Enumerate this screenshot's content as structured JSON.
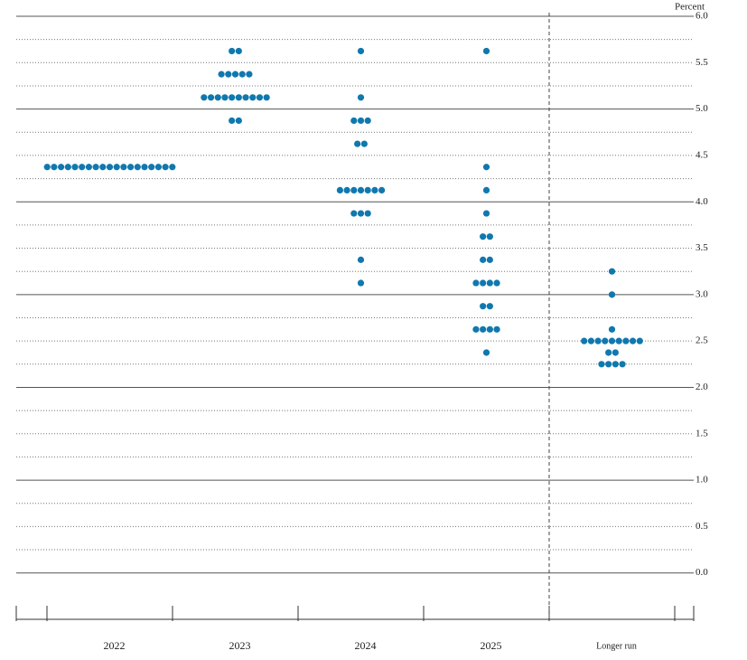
{
  "chart_data": {
    "type": "dot",
    "y_label": "Percent",
    "categories": [
      "2022",
      "2023",
      "2024",
      "2025",
      "Longer run"
    ],
    "dots": [
      [
        4.375,
        4.375,
        4.375,
        4.375,
        4.375,
        4.375,
        4.375,
        4.375,
        4.375,
        4.375,
        4.375,
        4.375,
        4.375,
        4.375,
        4.375,
        4.375,
        4.375,
        4.375,
        4.375
      ],
      [
        5.625,
        5.625,
        5.375,
        5.375,
        5.375,
        5.375,
        5.375,
        5.125,
        5.125,
        5.125,
        5.125,
        5.125,
        5.125,
        5.125,
        5.125,
        5.125,
        5.125,
        4.875,
        4.875
      ],
      [
        5.625,
        5.125,
        4.875,
        4.875,
        4.875,
        4.625,
        4.625,
        4.125,
        4.125,
        4.125,
        4.125,
        4.125,
        4.125,
        4.125,
        3.875,
        3.875,
        3.875,
        3.375,
        3.125
      ],
      [
        5.625,
        4.375,
        4.125,
        3.875,
        3.625,
        3.625,
        3.375,
        3.375,
        3.125,
        3.125,
        3.125,
        3.125,
        2.875,
        2.875,
        2.625,
        2.625,
        2.625,
        2.625,
        2.375
      ],
      [
        3.25,
        3.0,
        2.625,
        2.5,
        2.5,
        2.5,
        2.5,
        2.5,
        2.5,
        2.5,
        2.5,
        2.5,
        2.375,
        2.375,
        2.25,
        2.25,
        2.25,
        2.25
      ]
    ],
    "color": "#1078ae",
    "ylim": [
      -0.5,
      6.0
    ],
    "yticks": [
      {
        "value": 0,
        "label": "0.0"
      },
      0.5,
      {
        "value": 1,
        "label": "1.0"
      },
      1.5,
      {
        "value": 2,
        "label": "2.0"
      },
      2.5,
      {
        "value": 3,
        "label": "3.0"
      },
      3.5,
      {
        "value": 4,
        "label": "4.0"
      },
      4.5,
      {
        "value": 5,
        "label": "5.0"
      },
      5.5,
      {
        "value": 6,
        "label": "6.0"
      }
    ],
    "minor_yticks": [
      0.25,
      0.75,
      1.25,
      1.75,
      2.25,
      2.75,
      3.25,
      3.75,
      4.25,
      4.75,
      5.25,
      5.75
    ],
    "grid": true
  }
}
